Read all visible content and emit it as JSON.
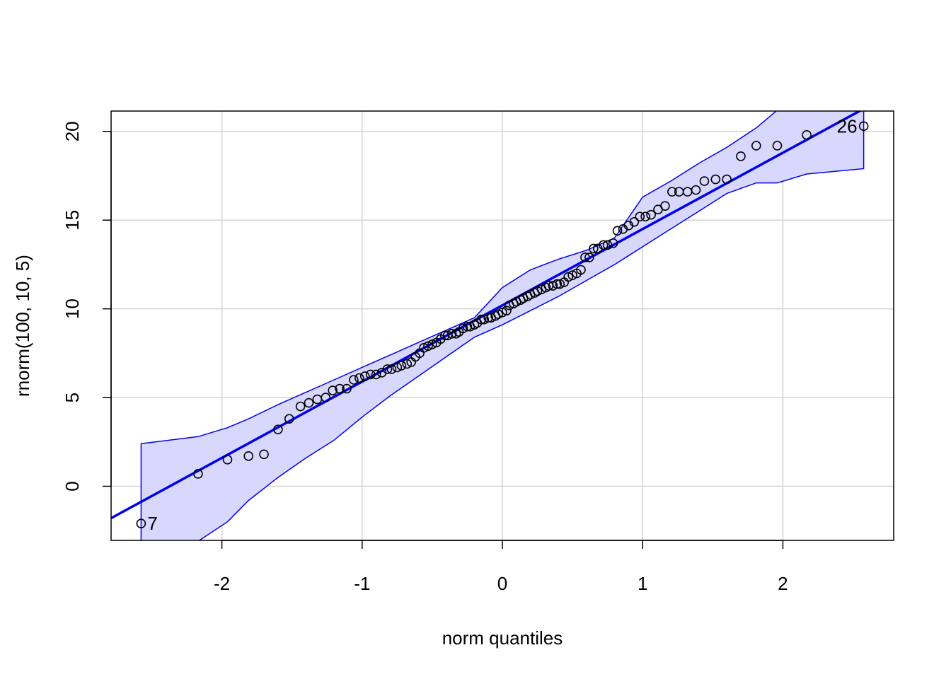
{
  "chart_data": {
    "type": "scatter",
    "title": "",
    "xlabel": "norm quantiles",
    "ylabel": "rnorm(100, 10, 5)",
    "xlim": [
      -2.79,
      2.79
    ],
    "ylim": [
      -3.05,
      21.15
    ],
    "grid": true,
    "x_ticks": [
      -2,
      -1,
      0,
      1,
      2
    ],
    "x_tick_labels": [
      "-2",
      "-1",
      "0",
      "1",
      "2"
    ],
    "y_ticks": [
      0,
      5,
      10,
      15,
      20
    ],
    "y_tick_labels": [
      "0",
      "5",
      "10",
      "15",
      "20"
    ],
    "colors": {
      "points": "#000000",
      "reference_line": "#0000ee",
      "envelope_fill": "#d8d8ff",
      "envelope_stroke": "#0000ee",
      "grid": "#d3d3d3"
    },
    "reference_line": {
      "intercept": 10.2,
      "slope": 4.3
    },
    "envelope": {
      "x": [
        -2.576,
        -2.17,
        -1.96,
        -1.81,
        -1.6,
        -1.4,
        -1.2,
        -1.0,
        -0.8,
        -0.6,
        -0.4,
        -0.2,
        0.0,
        0.2,
        0.4,
        0.6,
        0.8,
        1.0,
        1.2,
        1.4,
        1.6,
        1.81,
        1.96,
        2.17,
        2.576
      ],
      "upper": [
        2.4,
        2.8,
        3.3,
        3.8,
        4.6,
        5.3,
        6.0,
        6.7,
        7.4,
        8.1,
        8.8,
        9.5,
        11.2,
        12.2,
        12.8,
        13.3,
        14.0,
        16.3,
        17.2,
        18.2,
        19.1,
        20.2,
        21.2,
        22.2,
        23.8
      ],
      "lower": [
        -3.1,
        -3.1,
        -2.0,
        -0.8,
        0.5,
        1.6,
        2.6,
        3.9,
        5.1,
        6.2,
        7.3,
        8.4,
        9.1,
        9.9,
        10.7,
        11.6,
        12.5,
        13.5,
        14.5,
        15.5,
        16.5,
        17.1,
        17.1,
        17.6,
        17.9
      ]
    },
    "points": [
      {
        "x": -2.576,
        "y": -2.1
      },
      {
        "x": -2.17,
        "y": 0.7
      },
      {
        "x": -1.96,
        "y": 1.5
      },
      {
        "x": -1.81,
        "y": 1.7
      },
      {
        "x": -1.7,
        "y": 1.8
      },
      {
        "x": -1.6,
        "y": 3.2
      },
      {
        "x": -1.52,
        "y": 3.8
      },
      {
        "x": -1.44,
        "y": 4.5
      },
      {
        "x": -1.38,
        "y": 4.7
      },
      {
        "x": -1.32,
        "y": 4.9
      },
      {
        "x": -1.26,
        "y": 5.0
      },
      {
        "x": -1.21,
        "y": 5.4
      },
      {
        "x": -1.16,
        "y": 5.5
      },
      {
        "x": -1.11,
        "y": 5.5
      },
      {
        "x": -1.06,
        "y": 6.0
      },
      {
        "x": -1.02,
        "y": 6.1
      },
      {
        "x": -0.98,
        "y": 6.2
      },
      {
        "x": -0.94,
        "y": 6.3
      },
      {
        "x": -0.9,
        "y": 6.3
      },
      {
        "x": -0.86,
        "y": 6.4
      },
      {
        "x": -0.82,
        "y": 6.6
      },
      {
        "x": -0.79,
        "y": 6.6
      },
      {
        "x": -0.75,
        "y": 6.7
      },
      {
        "x": -0.72,
        "y": 6.8
      },
      {
        "x": -0.68,
        "y": 6.9
      },
      {
        "x": -0.65,
        "y": 7.0
      },
      {
        "x": -0.62,
        "y": 7.3
      },
      {
        "x": -0.59,
        "y": 7.5
      },
      {
        "x": -0.56,
        "y": 7.8
      },
      {
        "x": -0.53,
        "y": 7.9
      },
      {
        "x": -0.5,
        "y": 8.0
      },
      {
        "x": -0.47,
        "y": 8.1
      },
      {
        "x": -0.44,
        "y": 8.3
      },
      {
        "x": -0.41,
        "y": 8.5
      },
      {
        "x": -0.39,
        "y": 8.5
      },
      {
        "x": -0.36,
        "y": 8.6
      },
      {
        "x": -0.33,
        "y": 8.6
      },
      {
        "x": -0.31,
        "y": 8.7
      },
      {
        "x": -0.28,
        "y": 8.9
      },
      {
        "x": -0.25,
        "y": 9.0
      },
      {
        "x": -0.23,
        "y": 9.0
      },
      {
        "x": -0.2,
        "y": 9.1
      },
      {
        "x": -0.18,
        "y": 9.2
      },
      {
        "x": -0.15,
        "y": 9.4
      },
      {
        "x": -0.13,
        "y": 9.4
      },
      {
        "x": -0.1,
        "y": 9.5
      },
      {
        "x": -0.08,
        "y": 9.5
      },
      {
        "x": -0.05,
        "y": 9.6
      },
      {
        "x": -0.03,
        "y": 9.7
      },
      {
        "x": 0.0,
        "y": 9.8
      },
      {
        "x": 0.03,
        "y": 9.9
      },
      {
        "x": 0.05,
        "y": 10.2
      },
      {
        "x": 0.08,
        "y": 10.3
      },
      {
        "x": 0.1,
        "y": 10.4
      },
      {
        "x": 0.13,
        "y": 10.5
      },
      {
        "x": 0.15,
        "y": 10.6
      },
      {
        "x": 0.18,
        "y": 10.7
      },
      {
        "x": 0.2,
        "y": 10.8
      },
      {
        "x": 0.23,
        "y": 10.9
      },
      {
        "x": 0.25,
        "y": 11.0
      },
      {
        "x": 0.28,
        "y": 11.1
      },
      {
        "x": 0.31,
        "y": 11.2
      },
      {
        "x": 0.33,
        "y": 11.3
      },
      {
        "x": 0.36,
        "y": 11.3
      },
      {
        "x": 0.39,
        "y": 11.4
      },
      {
        "x": 0.41,
        "y": 11.4
      },
      {
        "x": 0.44,
        "y": 11.5
      },
      {
        "x": 0.47,
        "y": 11.8
      },
      {
        "x": 0.5,
        "y": 11.9
      },
      {
        "x": 0.53,
        "y": 12.0
      },
      {
        "x": 0.56,
        "y": 12.2
      },
      {
        "x": 0.59,
        "y": 12.9
      },
      {
        "x": 0.62,
        "y": 12.9
      },
      {
        "x": 0.65,
        "y": 13.4
      },
      {
        "x": 0.68,
        "y": 13.4
      },
      {
        "x": 0.72,
        "y": 13.6
      },
      {
        "x": 0.75,
        "y": 13.6
      },
      {
        "x": 0.79,
        "y": 13.7
      },
      {
        "x": 0.82,
        "y": 14.4
      },
      {
        "x": 0.86,
        "y": 14.5
      },
      {
        "x": 0.9,
        "y": 14.7
      },
      {
        "x": 0.94,
        "y": 14.9
      },
      {
        "x": 0.98,
        "y": 15.2
      },
      {
        "x": 1.02,
        "y": 15.2
      },
      {
        "x": 1.06,
        "y": 15.3
      },
      {
        "x": 1.11,
        "y": 15.6
      },
      {
        "x": 1.16,
        "y": 15.8
      },
      {
        "x": 1.21,
        "y": 16.6
      },
      {
        "x": 1.26,
        "y": 16.6
      },
      {
        "x": 1.32,
        "y": 16.6
      },
      {
        "x": 1.38,
        "y": 16.7
      },
      {
        "x": 1.44,
        "y": 17.2
      },
      {
        "x": 1.52,
        "y": 17.3
      },
      {
        "x": 1.6,
        "y": 17.3
      },
      {
        "x": 1.7,
        "y": 18.6
      },
      {
        "x": 1.81,
        "y": 19.2
      },
      {
        "x": 1.96,
        "y": 19.2
      },
      {
        "x": 2.17,
        "y": 19.8
      },
      {
        "x": 2.576,
        "y": 20.3
      }
    ],
    "annotations": [
      {
        "label": "7",
        "x": -2.576,
        "y": -2.1,
        "anchor": "right"
      },
      {
        "label": "26",
        "x": 2.576,
        "y": 20.3,
        "anchor": "left"
      }
    ]
  }
}
